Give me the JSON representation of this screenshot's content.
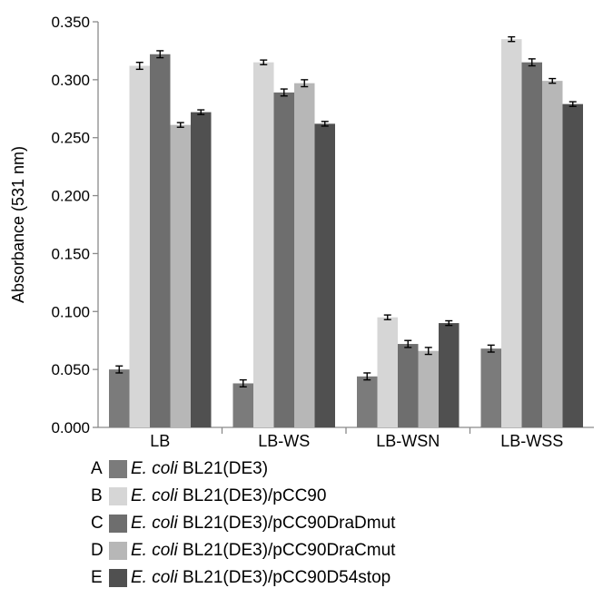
{
  "chart_data": {
    "type": "bar",
    "title": "",
    "xlabel": "",
    "ylabel": "Absorbance (531 nm)",
    "ylim": [
      0,
      0.35
    ],
    "yticks": [
      "0.000",
      "0.050",
      "0.100",
      "0.150",
      "0.200",
      "0.250",
      "0.300",
      "0.350"
    ],
    "categories": [
      "LB",
      "LB-WS",
      "LB-WSN",
      "LB-WSS"
    ],
    "grid": false,
    "legend_position": "bottom",
    "series": [
      {
        "name": "E. coli BL21(DE3)",
        "letter": "A",
        "species": "E. coli",
        "strain": " BL21(DE3)",
        "color": "#7b7b7b",
        "values": [
          0.05,
          0.038,
          0.044,
          0.068
        ],
        "errors": [
          0.003,
          0.003,
          0.003,
          0.003
        ]
      },
      {
        "name": "E. coli BL21(DE3)/pCC90",
        "letter": "B",
        "species": "E. coli",
        "strain": " BL21(DE3)/pCC90",
        "color": "#d6d6d6",
        "values": [
          0.312,
          0.315,
          0.095,
          0.335
        ],
        "errors": [
          0.003,
          0.002,
          0.002,
          0.002
        ]
      },
      {
        "name": "E. coli BL21(DE3)/pCC90DraDmut",
        "letter": "C",
        "species": "E. coli",
        "strain": " BL21(DE3)/pCC90DraDmut",
        "color": "#6e6e6e",
        "values": [
          0.322,
          0.289,
          0.072,
          0.315
        ],
        "errors": [
          0.003,
          0.003,
          0.003,
          0.003
        ]
      },
      {
        "name": "E. coli BL21(DE3)/pCC90DraCmut",
        "letter": "D",
        "species": "E. coli",
        "strain": " BL21(DE3)/pCC90DraCmut",
        "color": "#b7b7b7",
        "values": [
          0.261,
          0.297,
          0.066,
          0.299
        ],
        "errors": [
          0.002,
          0.003,
          0.003,
          0.002
        ]
      },
      {
        "name": "E. coli BL21(DE3)/pCC90D54stop",
        "letter": "E",
        "species": "E. coli",
        "strain": " BL21(DE3)/pCC90D54stop",
        "color": "#505050",
        "values": [
          0.272,
          0.262,
          0.09,
          0.279
        ],
        "errors": [
          0.002,
          0.002,
          0.002,
          0.002
        ]
      }
    ]
  }
}
